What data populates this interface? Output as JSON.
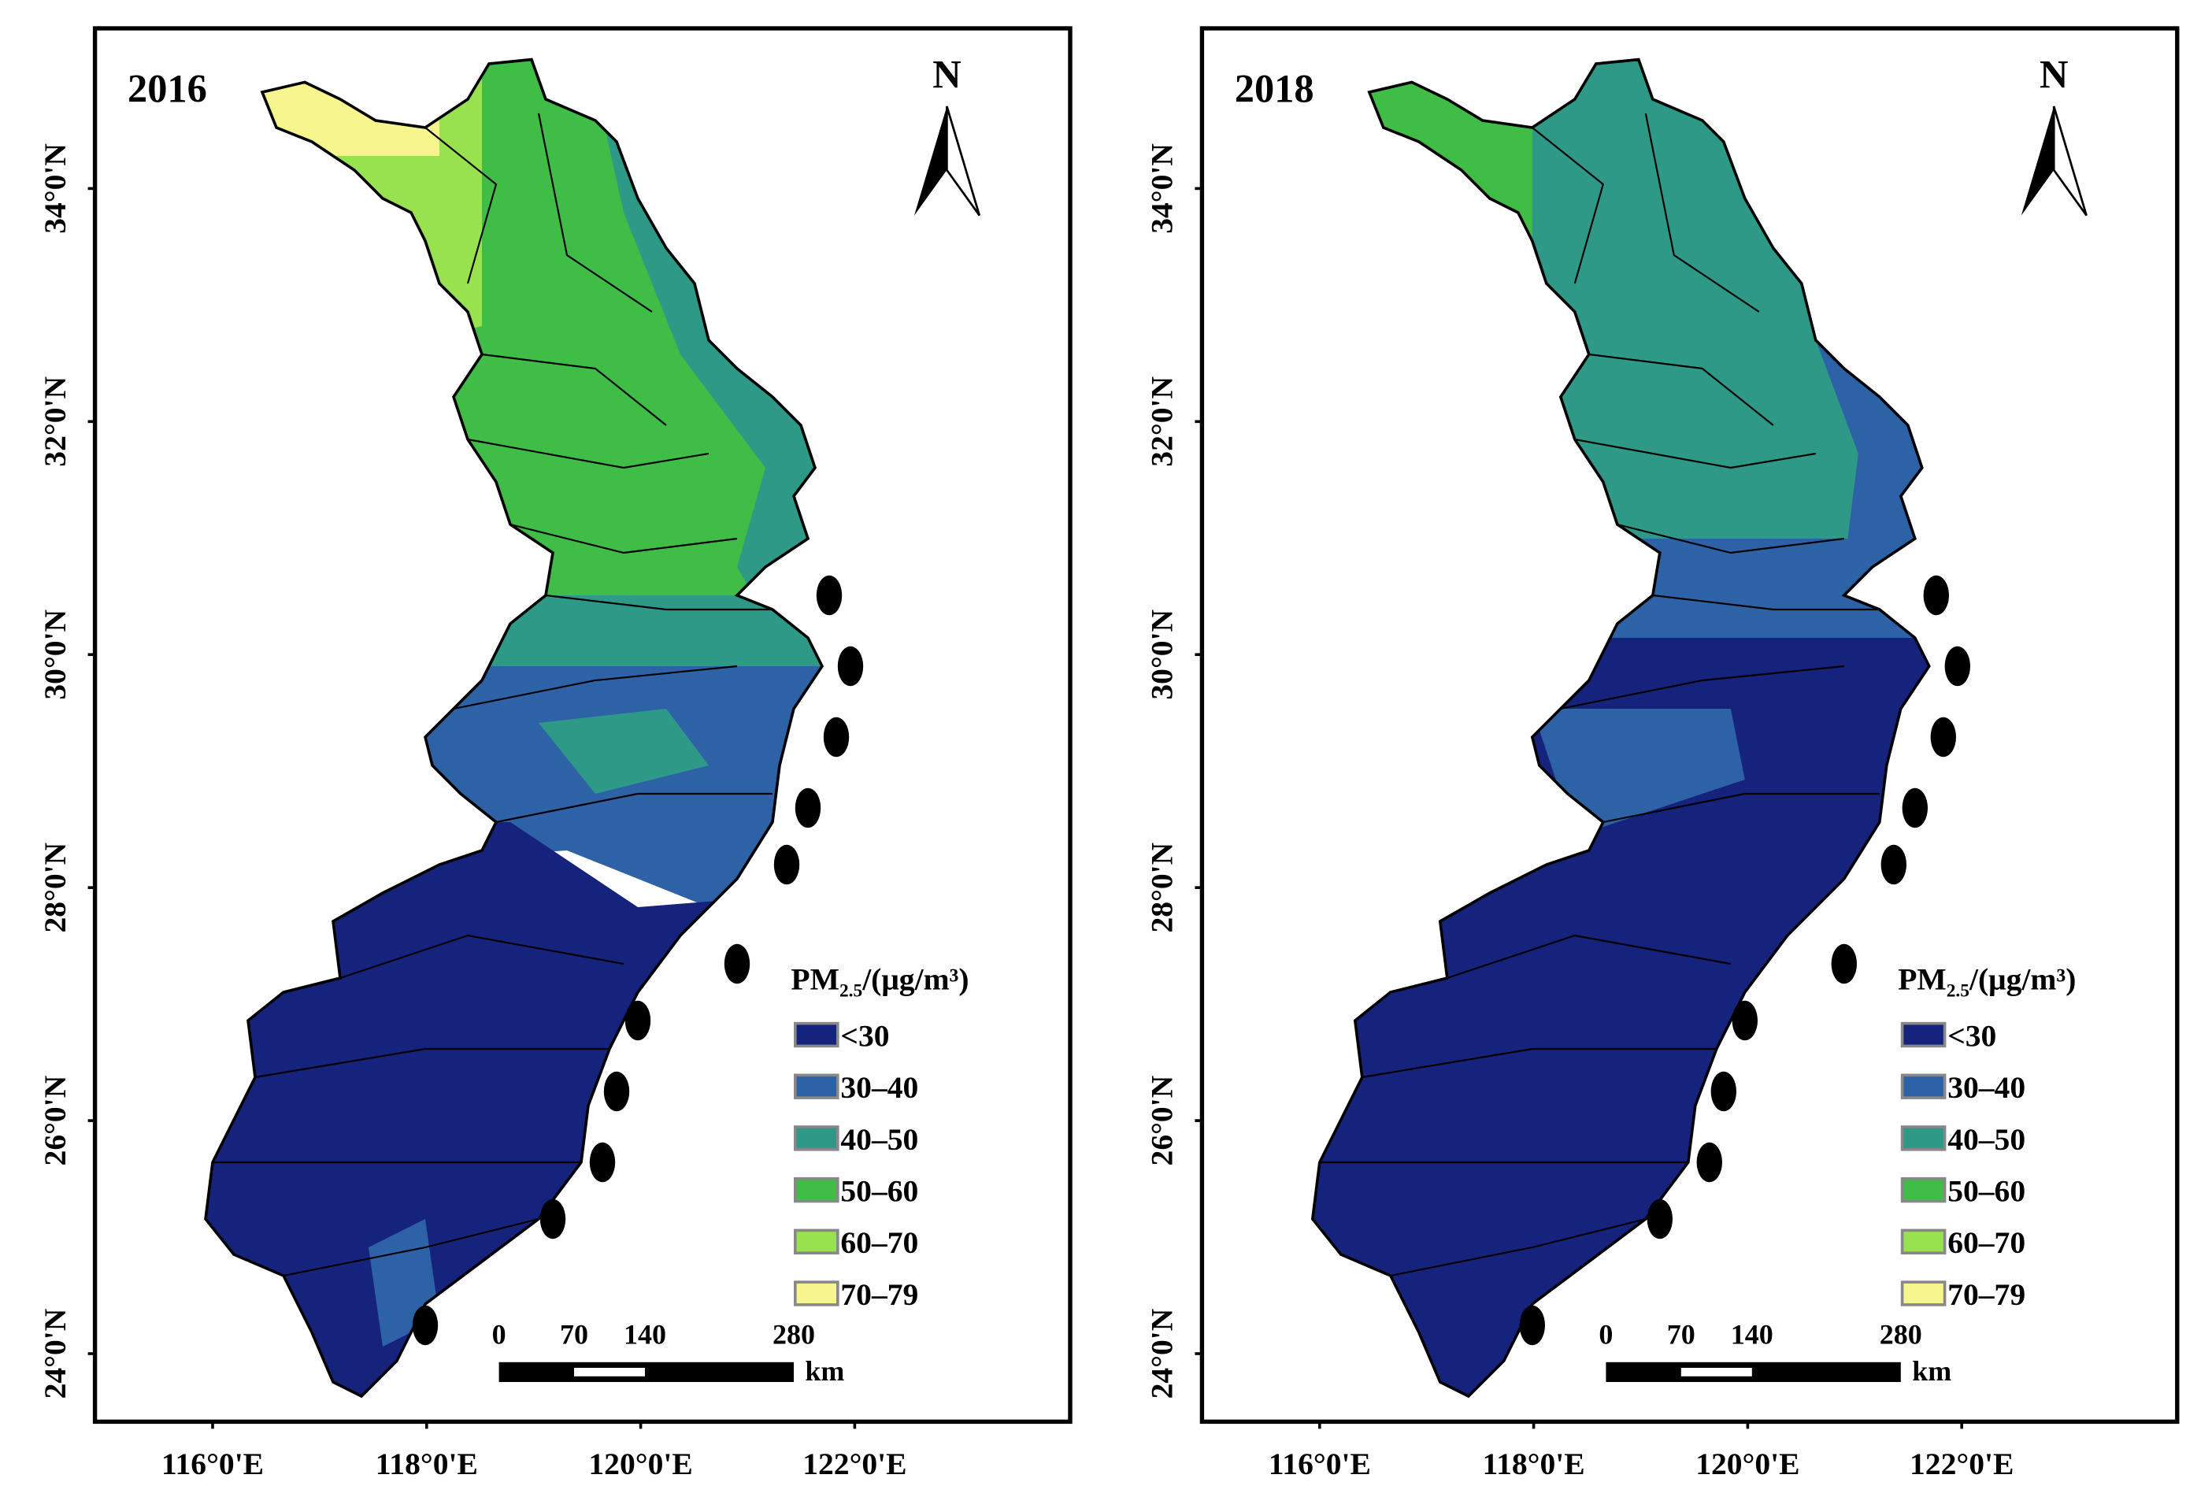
{
  "panels": [
    {
      "year": "2016",
      "north": "N",
      "lat_labels": [
        "34°0'N",
        "32°0'N",
        "30°0'N",
        "28°0'N",
        "26°0'N",
        "24°0'N"
      ],
      "lon_labels": [
        "116°0'E",
        "118°0'E",
        "120°0'E",
        "122°0'E"
      ],
      "legend": {
        "title_main": "PM",
        "title_sub": "2.5",
        "title_rest": "/(μg/m³)",
        "items": [
          {
            "label": "<30",
            "color": "#16237c"
          },
          {
            "label": "30–40",
            "color": "#2e62a6"
          },
          {
            "label": "40–50",
            "color": "#2f9988"
          },
          {
            "label": "50–60",
            "color": "#3fbd47"
          },
          {
            "label": "60–70",
            "color": "#98e250"
          },
          {
            "label": "70–79",
            "color": "#f6f58e"
          }
        ]
      },
      "scale": {
        "labels": [
          "0",
          "70",
          "140",
          "280"
        ],
        "unit": "km"
      }
    },
    {
      "year": "2018",
      "north": "N",
      "lat_labels": [
        "34°0'N",
        "32°0'N",
        "30°0'N",
        "28°0'N",
        "26°0'N",
        "24°0'N"
      ],
      "lon_labels": [
        "116°0'E",
        "118°0'E",
        "120°0'E",
        "122°0'E"
      ],
      "legend": {
        "title_main": "PM",
        "title_sub": "2.5",
        "title_rest": "/(μg/m³)",
        "items": [
          {
            "label": "<30",
            "color": "#16237c"
          },
          {
            "label": "30–40",
            "color": "#2e62a6"
          },
          {
            "label": "40–50",
            "color": "#2f9988"
          },
          {
            "label": "50–60",
            "color": "#3fbd47"
          },
          {
            "label": "60–70",
            "color": "#98e250"
          },
          {
            "label": "70–79",
            "color": "#f6f58e"
          }
        ]
      },
      "scale": {
        "labels": [
          "0",
          "70",
          "140",
          "280"
        ],
        "unit": "km"
      }
    }
  ]
}
